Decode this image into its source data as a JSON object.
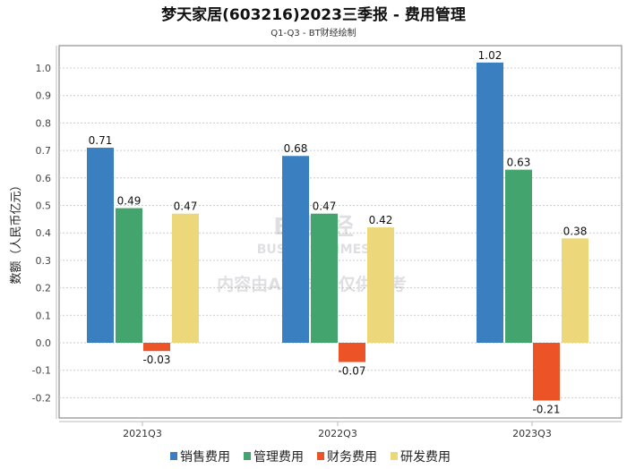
{
  "chart_data": {
    "type": "bar",
    "title": "梦天家居(603216)2023三季报 - 费用管理",
    "subtitle": "Q1-Q3 - BT财经绘制",
    "xlabel": "",
    "ylabel": "数额（人民币亿元）",
    "ylim": [
      -0.27,
      1.08
    ],
    "yticks": [
      -0.2,
      -0.1,
      0.0,
      0.1,
      0.2,
      0.3,
      0.4,
      0.5,
      0.6,
      0.7,
      0.8,
      0.9,
      1.0
    ],
    "grid": true,
    "legend_position": "bottom",
    "categories": [
      "2021Q3",
      "2022Q3",
      "2023Q3"
    ],
    "series": [
      {
        "name": "销售费用",
        "color": "#3a80c1",
        "values": [
          0.71,
          0.68,
          1.02
        ]
      },
      {
        "name": "管理费用",
        "color": "#44a46e",
        "values": [
          0.49,
          0.47,
          0.63
        ]
      },
      {
        "name": "财务费用",
        "color": "#ec5428",
        "values": [
          -0.03,
          -0.07,
          -0.21
        ]
      },
      {
        "name": "研发费用",
        "color": "#ecd77a",
        "values": [
          0.47,
          0.42,
          0.38
        ]
      }
    ]
  },
  "watermark": {
    "brand": "BT财经",
    "brand_en": "BUSINESSTIMES",
    "notice": "内容由AI生成，仅供参考"
  }
}
